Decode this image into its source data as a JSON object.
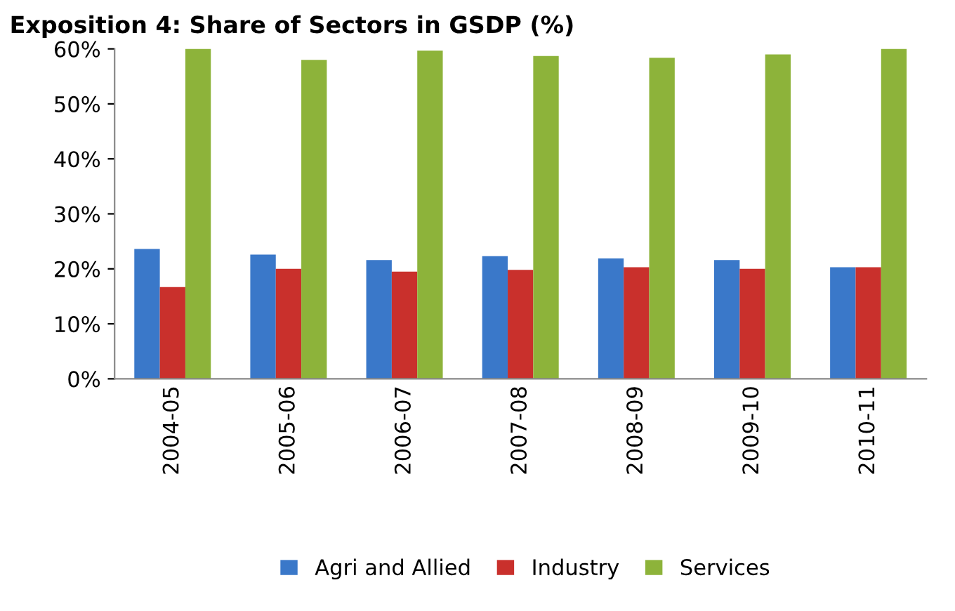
{
  "chart_data": {
    "type": "bar",
    "title": "Exposition 4: Share of Sectors in GSDP (%)",
    "categories": [
      "2004-05",
      "2005-06",
      "2006-07",
      "2007-08",
      "2008-09",
      "2009-10",
      "2010-11"
    ],
    "series": [
      {
        "name": "Agri and Allied",
        "color": "#3a78c9",
        "values": [
          23.6,
          22.6,
          21.6,
          22.3,
          21.9,
          21.6,
          20.3
        ]
      },
      {
        "name": "Industry",
        "color": "#c9302c",
        "values": [
          16.7,
          20.0,
          19.5,
          19.8,
          20.3,
          20.0,
          20.3
        ]
      },
      {
        "name": "Services",
        "color": "#8db33a",
        "values": [
          60.0,
          58.0,
          59.7,
          58.7,
          58.4,
          59.0,
          60.0
        ]
      }
    ],
    "ylim": [
      0,
      60
    ],
    "yticks": [
      {
        "value": 0,
        "label": "0%"
      },
      {
        "value": 10,
        "label": "10%"
      },
      {
        "value": 20,
        "label": "20%"
      },
      {
        "value": 30,
        "label": "30%"
      },
      {
        "value": 40,
        "label": "40%"
      },
      {
        "value": 50,
        "label": "50%"
      },
      {
        "value": 60,
        "label": "60%"
      }
    ],
    "grid": false,
    "legend": "bottom"
  }
}
